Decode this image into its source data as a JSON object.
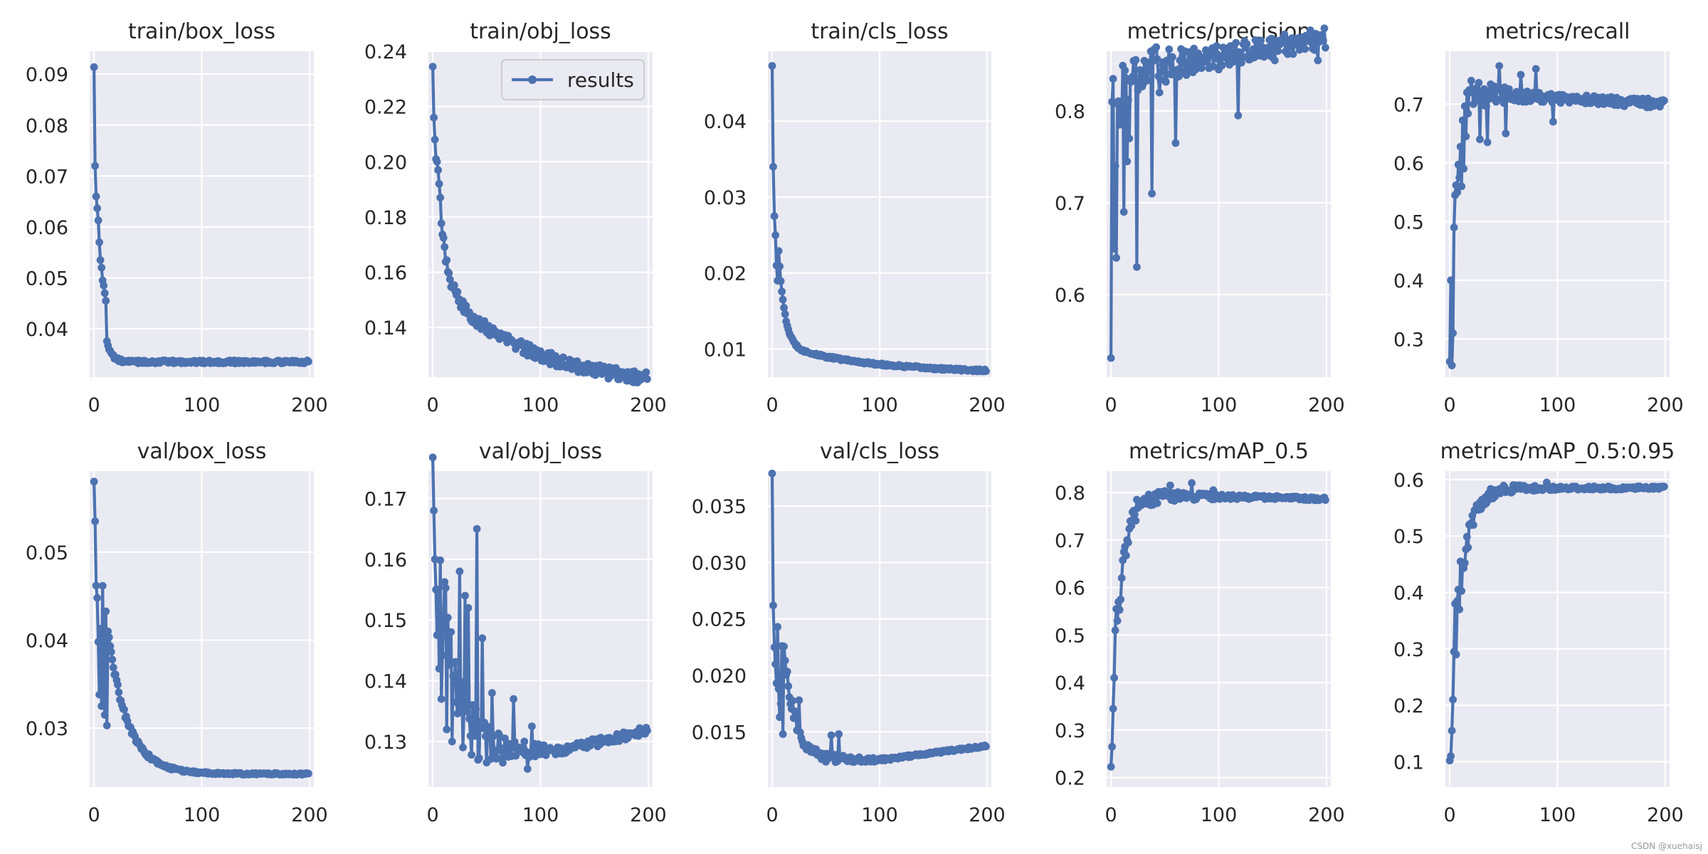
{
  "watermark": "CSDN @xuehaisj",
  "colors": {
    "panel_bg": "#eaeaf2",
    "grid": "#ffffff",
    "series": "#4c72b0",
    "text": "#262626"
  },
  "chart_data": [
    {
      "type": "line",
      "title": "train/box_loss",
      "xlim": [
        -4,
        204
      ],
      "ylim": [
        0.0305,
        0.0945
      ],
      "xticks": [
        0,
        100,
        200
      ],
      "yticks": [
        0.04,
        0.05,
        0.06,
        0.07,
        0.08,
        0.09
      ],
      "ytick_labels": [
        "0.04",
        "0.05",
        "0.06",
        "0.07",
        "0.08",
        "0.09"
      ],
      "legend": null,
      "series": [
        {
          "name": "results",
          "shape": "decay",
          "y0": 0.0915,
          "yinf": 0.0335,
          "k": 0.22,
          "noise": 0.0003,
          "spikes": [
            [
              1,
              0.072
            ],
            [
              2,
              0.066
            ],
            [
              4,
              0.0613
            ],
            [
              5,
              0.057
            ],
            [
              6,
              0.0535
            ],
            [
              7,
              0.052
            ],
            [
              8,
              0.0495
            ],
            [
              9,
              0.0485
            ],
            [
              10,
              0.047
            ],
            [
              11,
              0.0455
            ]
          ]
        }
      ]
    },
    {
      "type": "line",
      "title": "train/obj_loss",
      "xlim": [
        -4,
        204
      ],
      "ylim": [
        0.122,
        0.24
      ],
      "xticks": [
        0,
        100,
        200
      ],
      "yticks": [
        0.14,
        0.16,
        0.18,
        0.2,
        0.22,
        0.24
      ],
      "ytick_labels": [
        "0.14",
        "0.16",
        "0.18",
        "0.20",
        "0.22",
        "0.24"
      ],
      "legend": {
        "label": "results",
        "loc": "upper right"
      },
      "series": [
        {
          "name": "results",
          "shape": "decay2",
          "y0": 0.235,
          "yinf": 0.118,
          "k": 0.15,
          "a2": 0.04,
          "k2": 0.012,
          "noise": 0.0022,
          "spikes": [
            [
              1,
              0.216
            ],
            [
              2,
              0.208
            ],
            [
              3,
              0.201
            ],
            [
              5,
              0.197
            ],
            [
              6,
              0.192
            ],
            [
              7,
              0.187
            ]
          ]
        }
      ]
    },
    {
      "type": "line",
      "title": "train/cls_loss",
      "xlim": [
        -4,
        204
      ],
      "ylim": [
        0.0063,
        0.0492
      ],
      "xticks": [
        0,
        100,
        200
      ],
      "yticks": [
        0.01,
        0.02,
        0.03,
        0.04
      ],
      "ytick_labels": [
        "0.01",
        "0.02",
        "0.03",
        "0.04"
      ],
      "legend": null,
      "series": [
        {
          "name": "results",
          "shape": "decay2",
          "y0": 0.0473,
          "yinf": 0.0068,
          "k": 0.18,
          "a2": 0.004,
          "k2": 0.012,
          "noise": 0.00015,
          "spikes": [
            [
              1,
              0.034
            ],
            [
              2,
              0.0275
            ],
            [
              3,
              0.025
            ],
            [
              4,
              0.021
            ],
            [
              5,
              0.019
            ]
          ]
        }
      ]
    },
    {
      "type": "line",
      "title": "metrics/precision",
      "xlim": [
        -4,
        204
      ],
      "ylim": [
        0.51,
        0.865
      ],
      "xticks": [
        0,
        100,
        200
      ],
      "yticks": [
        0.6,
        0.7,
        0.8
      ],
      "ytick_labels": [
        "0.6",
        "0.7",
        "0.8"
      ],
      "legend": null,
      "series": [
        {
          "name": "results",
          "shape": "rise",
          "y0": 0.53,
          "yinf": 0.84,
          "k": 0.28,
          "lin": 0.0002,
          "noise": 0.035,
          "noise_decay": 0.012,
          "noise_floor": 0.012,
          "spikes": [
            [
              1,
              0.81
            ],
            [
              2,
              0.835
            ],
            [
              3,
              0.65
            ],
            [
              4,
              0.74
            ],
            [
              5,
              0.64
            ],
            [
              8,
              0.785
            ],
            [
              10,
              0.79
            ],
            [
              12,
              0.69
            ],
            [
              15,
              0.745
            ],
            [
              17,
              0.77
            ],
            [
              24,
              0.63
            ],
            [
              30,
              0.83
            ],
            [
              38,
              0.71
            ],
            [
              45,
              0.82
            ],
            [
              55,
              0.84
            ],
            [
              60,
              0.765
            ],
            [
              100,
              0.845
            ],
            [
              118,
              0.795
            ],
            [
              152,
              0.855
            ],
            [
              192,
              0.855
            ]
          ]
        }
      ]
    },
    {
      "type": "line",
      "title": "metrics/recall",
      "xlim": [
        -4,
        204
      ],
      "ylim": [
        0.235,
        0.79
      ],
      "xticks": [
        0,
        100,
        200
      ],
      "yticks": [
        0.3,
        0.4,
        0.5,
        0.6,
        0.7
      ],
      "ytick_labels": [
        "0.3",
        "0.4",
        "0.5",
        "0.6",
        "0.7"
      ],
      "legend": null,
      "series": [
        {
          "name": "results",
          "shape": "rise",
          "y0": 0.255,
          "yinf": 0.72,
          "k": 0.2,
          "lin": -0.0001,
          "noise": 0.04,
          "noise_decay": 0.02,
          "noise_floor": 0.008,
          "spikes": [
            [
              1,
              0.4
            ],
            [
              2,
              0.255
            ],
            [
              3,
              0.31
            ],
            [
              4,
              0.49
            ],
            [
              5,
              0.545
            ],
            [
              7,
              0.55
            ],
            [
              9,
              0.575
            ],
            [
              11,
              0.56
            ],
            [
              13,
              0.59
            ],
            [
              15,
              0.645
            ],
            [
              20,
              0.74
            ],
            [
              28,
              0.64
            ],
            [
              35,
              0.635
            ],
            [
              46,
              0.765
            ],
            [
              52,
              0.65
            ],
            [
              66,
              0.75
            ],
            [
              80,
              0.76
            ],
            [
              96,
              0.67
            ],
            [
              196,
              0.706
            ]
          ]
        }
      ]
    },
    {
      "type": "line",
      "title": "val/box_loss",
      "xlim": [
        -4,
        204
      ],
      "ylim": [
        0.0233,
        0.0592
      ],
      "xticks": [
        0,
        100,
        200
      ],
      "yticks": [
        0.03,
        0.04,
        0.05
      ],
      "ytick_labels": [
        "0.03",
        "0.04",
        "0.05"
      ],
      "legend": null,
      "series": [
        {
          "name": "results",
          "shape": "decay",
          "y0": 0.0578,
          "yinf": 0.0248,
          "k": 0.055,
          "noise": 0.0007,
          "noise_decay": 0.02,
          "noise_floor": 0.0001,
          "spikes": [
            [
              1,
              0.0535
            ],
            [
              2,
              0.0462
            ],
            [
              3,
              0.0448
            ],
            [
              4,
              0.0398
            ],
            [
              5,
              0.0338
            ],
            [
              6,
              0.0413
            ],
            [
              7,
              0.0325
            ],
            [
              9,
              0.0352
            ],
            [
              10,
              0.0315
            ],
            [
              12,
              0.0303
            ]
          ]
        }
      ]
    },
    {
      "type": "line",
      "title": "val/obj_loss",
      "xlim": [
        -4,
        204
      ],
      "ylim": [
        0.1225,
        0.1745
      ],
      "xticks": [
        0,
        100,
        200
      ],
      "yticks": [
        0.13,
        0.14,
        0.15,
        0.16,
        0.17
      ],
      "ytick_labels": [
        "0.13",
        "0.14",
        "0.15",
        "0.16",
        "0.17"
      ],
      "legend": null,
      "series": [
        {
          "name": "results",
          "shape": "vshape",
          "y0": 0.1715,
          "ymin": 0.1285,
          "k": 0.07,
          "lin": 4.2e-05,
          "tstart": 120,
          "noise": 0.012,
          "noise_decay": 0.025,
          "noise_floor": 0.0007,
          "spikes": [
            [
              1,
              0.168
            ],
            [
              2,
              0.16
            ],
            [
              3,
              0.155
            ],
            [
              4,
              0.1475
            ],
            [
              5,
              0.155
            ],
            [
              6,
              0.142
            ],
            [
              8,
              0.137
            ],
            [
              10,
              0.15
            ],
            [
              13,
              0.132
            ],
            [
              18,
              0.13
            ],
            [
              25,
              0.158
            ],
            [
              30,
              0.154
            ],
            [
              33,
              0.152
            ],
            [
              37,
              0.136
            ],
            [
              41,
              0.165
            ],
            [
              46,
              0.147
            ],
            [
              55,
              0.138
            ],
            [
              65,
              0.1265
            ],
            [
              75,
              0.137
            ],
            [
              88,
              0.1255
            ],
            [
              92,
              0.1325
            ],
            [
              120,
              0.128
            ]
          ]
        }
      ]
    },
    {
      "type": "line",
      "title": "val/cls_loss",
      "xlim": [
        -4,
        204
      ],
      "ylim": [
        0.0101,
        0.0381
      ],
      "xticks": [
        0,
        100,
        200
      ],
      "yticks": [
        0.015,
        0.02,
        0.025,
        0.03,
        0.035
      ],
      "ytick_labels": [
        "0.015",
        "0.020",
        "0.025",
        "0.030",
        "0.035"
      ],
      "legend": null,
      "series": [
        {
          "name": "results",
          "shape": "vshape",
          "y0": 0.0372,
          "ymin": 0.0125,
          "k": 0.09,
          "lin": 1.25e-05,
          "tstart": 100,
          "noise": 0.0012,
          "noise_decay": 0.02,
          "noise_floor": 0.0001,
          "spikes": [
            [
              1,
              0.0262
            ],
            [
              2,
              0.0225
            ],
            [
              3,
              0.021
            ],
            [
              4,
              0.0193
            ],
            [
              5,
              0.0243
            ],
            [
              6,
              0.0188
            ],
            [
              7,
              0.0163
            ],
            [
              8,
              0.0175
            ],
            [
              10,
              0.0148
            ],
            [
              25,
              0.0178
            ],
            [
              55,
              0.0147
            ],
            [
              62,
              0.0148
            ]
          ]
        }
      ]
    },
    {
      "type": "line",
      "title": "metrics/mAP_0.5",
      "xlim": [
        -4,
        204
      ],
      "ylim": [
        0.18,
        0.845
      ],
      "xticks": [
        0,
        100,
        200
      ],
      "yticks": [
        0.2,
        0.3,
        0.4,
        0.5,
        0.6,
        0.7,
        0.8
      ],
      "ytick_labels": [
        "0.2",
        "0.3",
        "0.4",
        "0.5",
        "0.6",
        "0.7",
        "0.8"
      ],
      "legend": null,
      "series": [
        {
          "name": "results",
          "shape": "rise",
          "y0": 0.205,
          "yinf": 0.795,
          "k": 0.12,
          "lin": -4e-05,
          "noise": 0.025,
          "noise_decay": 0.015,
          "noise_floor": 0.004,
          "spikes": [
            [
              1,
              0.265
            ],
            [
              2,
              0.345
            ],
            [
              3,
              0.41
            ],
            [
              4,
              0.51
            ],
            [
              5,
              0.555
            ],
            [
              6,
              0.53
            ],
            [
              7,
              0.57
            ],
            [
              9,
              0.575
            ],
            [
              10,
              0.62
            ],
            [
              12,
              0.675
            ],
            [
              15,
              0.7
            ],
            [
              18,
              0.74
            ],
            [
              24,
              0.785
            ],
            [
              55,
              0.815
            ],
            [
              75,
              0.82
            ],
            [
              95,
              0.805
            ],
            [
              196,
              0.787
            ]
          ]
        }
      ]
    },
    {
      "type": "line",
      "title": "metrics/mAP_0.5:0.95",
      "xlim": [
        -4,
        204
      ],
      "ylim": [
        0.055,
        0.615
      ],
      "xticks": [
        0,
        100,
        200
      ],
      "yticks": [
        0.1,
        0.2,
        0.3,
        0.4,
        0.5,
        0.6
      ],
      "ytick_labels": [
        "0.1",
        "0.2",
        "0.3",
        "0.4",
        "0.5",
        "0.6"
      ],
      "legend": null,
      "series": [
        {
          "name": "results",
          "shape": "rise",
          "y0": 0.085,
          "yinf": 0.585,
          "k": 0.1,
          "lin": 0.0,
          "noise": 0.02,
          "noise_decay": 0.018,
          "noise_floor": 0.003,
          "spikes": [
            [
              1,
              0.11
            ],
            [
              2,
              0.155
            ],
            [
              3,
              0.21
            ],
            [
              4,
              0.295
            ],
            [
              5,
              0.38
            ],
            [
              6,
              0.29
            ],
            [
              7,
              0.385
            ],
            [
              8,
              0.405
            ],
            [
              9,
              0.37
            ],
            [
              10,
              0.455
            ],
            [
              12,
              0.45
            ],
            [
              18,
              0.52
            ],
            [
              25,
              0.555
            ],
            [
              60,
              0.59
            ],
            [
              90,
              0.595
            ],
            [
              196,
              0.586
            ]
          ]
        }
      ]
    }
  ]
}
